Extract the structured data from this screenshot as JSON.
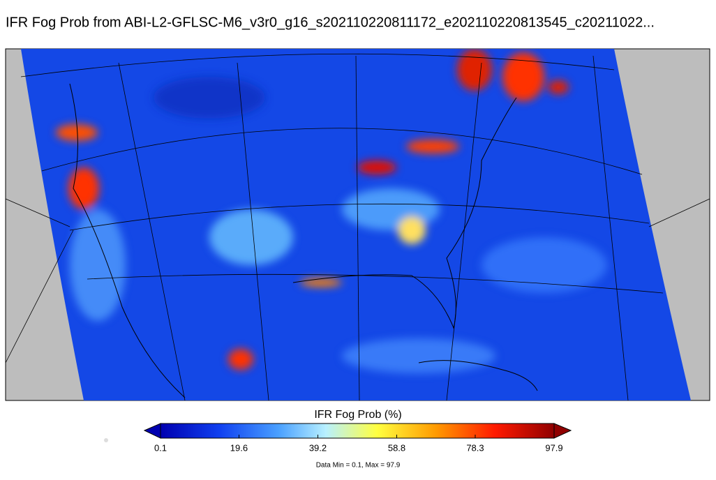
{
  "header": {
    "title": "IFR Fog Prob from ABI-L2-GFLSC-M6_v3r0_g16_s202110220811172_e202110220813545_c20211022..."
  },
  "colorbar": {
    "label": "IFR Fog Prob (%)",
    "range": [
      0.1,
      97.9
    ],
    "ticks": [
      0.1,
      19.6,
      39.2,
      58.8,
      78.3,
      97.9
    ]
  },
  "footnote": "Data Min = 0.1, Max = 97.9"
}
